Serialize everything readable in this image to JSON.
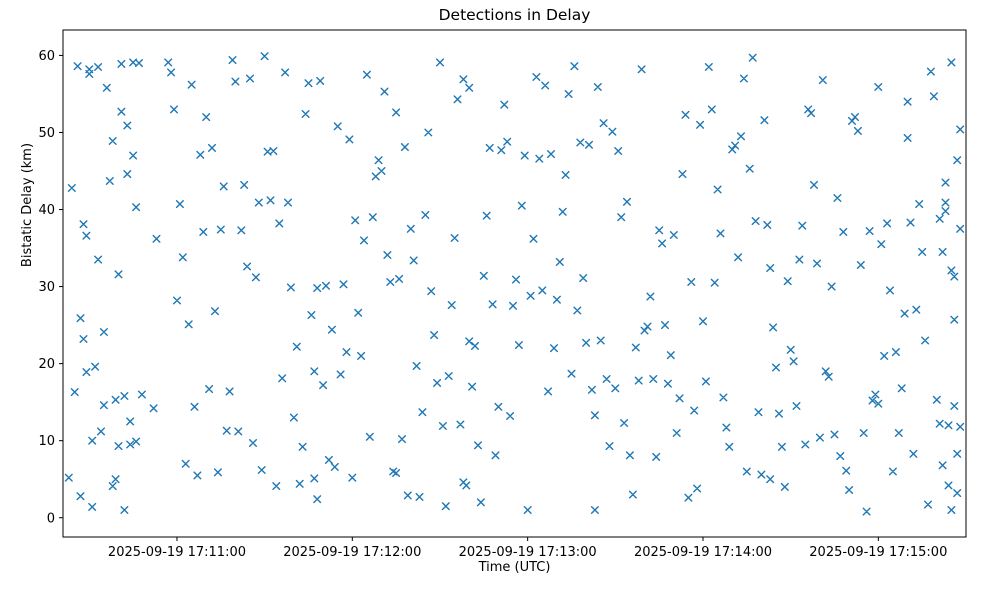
{
  "title": "Detections in Delay",
  "xlabel": "Time (UTC)",
  "ylabel": "Bistatic Delay (km)",
  "chart_data": {
    "type": "scatter",
    "title": "Detections in Delay",
    "xlabel": "Time (UTC)",
    "ylabel": "Bistatic Delay (km)",
    "marker": "x",
    "marker_color": "#1f77b4",
    "grid": false,
    "legend": "none",
    "x_encoding": "seconds after 2025-09-19 17:10:00 UTC",
    "xlim": [
      21,
      330
    ],
    "ylim": [
      -2.5,
      63.3
    ],
    "x_ticks": [
      {
        "value": 60,
        "label": "2025-09-19 17:11:00"
      },
      {
        "value": 120,
        "label": "2025-09-19 17:12:00"
      },
      {
        "value": 180,
        "label": "2025-09-19 17:13:00"
      },
      {
        "value": 240,
        "label": "2025-09-19 17:14:00"
      },
      {
        "value": 300,
        "label": "2025-09-19 17:15:00"
      }
    ],
    "y_ticks": [
      0,
      10,
      20,
      30,
      40,
      50,
      60
    ],
    "points": [
      [
        23,
        5.2
      ],
      [
        24,
        42.8
      ],
      [
        25,
        16.3
      ],
      [
        26,
        58.6
      ],
      [
        27,
        25.9
      ],
      [
        27,
        2.8
      ],
      [
        28,
        23.2
      ],
      [
        28,
        38.1
      ],
      [
        29,
        18.9
      ],
      [
        29,
        36.6
      ],
      [
        30,
        58.2
      ],
      [
        30,
        57.6
      ],
      [
        31,
        10.0
      ],
      [
        31,
        1.4
      ],
      [
        32,
        19.6
      ],
      [
        33,
        58.5
      ],
      [
        33,
        33.5
      ],
      [
        34,
        11.2
      ],
      [
        35,
        24.1
      ],
      [
        35,
        14.6
      ],
      [
        36,
        55.8
      ],
      [
        37,
        43.7
      ],
      [
        38,
        4.1
      ],
      [
        38,
        48.9
      ],
      [
        39,
        15.3
      ],
      [
        39,
        5.0
      ],
      [
        40,
        31.6
      ],
      [
        40,
        9.3
      ],
      [
        41,
        58.9
      ],
      [
        41,
        52.7
      ],
      [
        42,
        15.8
      ],
      [
        42,
        1.0
      ],
      [
        43,
        50.9
      ],
      [
        43,
        44.6
      ],
      [
        44,
        12.5
      ],
      [
        44,
        9.5
      ],
      [
        45,
        59.1
      ],
      [
        45,
        47.0
      ],
      [
        46,
        40.3
      ],
      [
        46,
        9.9
      ],
      [
        47,
        59.0
      ],
      [
        48,
        16.0
      ],
      [
        52,
        14.2
      ],
      [
        53,
        36.2
      ],
      [
        57,
        59.1
      ],
      [
        58,
        57.8
      ],
      [
        59,
        53.0
      ],
      [
        60,
        28.2
      ],
      [
        61,
        40.7
      ],
      [
        62,
        33.8
      ],
      [
        63,
        7.0
      ],
      [
        64,
        25.1
      ],
      [
        65,
        56.2
      ],
      [
        66,
        14.4
      ],
      [
        67,
        5.5
      ],
      [
        68,
        47.1
      ],
      [
        69,
        37.1
      ],
      [
        70,
        52.0
      ],
      [
        71,
        16.7
      ],
      [
        72,
        48.0
      ],
      [
        73,
        26.8
      ],
      [
        74,
        5.9
      ],
      [
        75,
        37.4
      ],
      [
        76,
        43.0
      ],
      [
        77,
        11.3
      ],
      [
        78,
        16.4
      ],
      [
        79,
        59.4
      ],
      [
        80,
        56.6
      ],
      [
        81,
        11.2
      ],
      [
        82,
        37.3
      ],
      [
        83,
        43.2
      ],
      [
        84,
        32.6
      ],
      [
        85,
        57.0
      ],
      [
        86,
        9.7
      ],
      [
        87,
        31.2
      ],
      [
        88,
        40.9
      ],
      [
        89,
        6.2
      ],
      [
        90,
        59.9
      ],
      [
        91,
        47.5
      ],
      [
        92,
        41.2
      ],
      [
        93,
        47.6
      ],
      [
        94,
        4.1
      ],
      [
        95,
        38.2
      ],
      [
        96,
        18.1
      ],
      [
        97,
        57.8
      ],
      [
        98,
        40.9
      ],
      [
        99,
        29.9
      ],
      [
        100,
        13.0
      ],
      [
        101,
        22.2
      ],
      [
        102,
        4.4
      ],
      [
        103,
        9.2
      ],
      [
        104,
        52.4
      ],
      [
        105,
        56.4
      ],
      [
        106,
        26.3
      ],
      [
        107,
        19.0
      ],
      [
        107,
        5.1
      ],
      [
        108,
        29.8
      ],
      [
        108,
        2.4
      ],
      [
        109,
        56.7
      ],
      [
        110,
        17.2
      ],
      [
        111,
        30.1
      ],
      [
        112,
        7.5
      ],
      [
        113,
        24.4
      ],
      [
        114,
        6.6
      ],
      [
        115,
        50.8
      ],
      [
        116,
        18.6
      ],
      [
        117,
        30.3
      ],
      [
        118,
        21.5
      ],
      [
        119,
        49.1
      ],
      [
        120,
        5.2
      ],
      [
        121,
        38.6
      ],
      [
        122,
        26.6
      ],
      [
        123,
        21.0
      ],
      [
        124,
        36.0
      ],
      [
        125,
        57.5
      ],
      [
        126,
        10.5
      ],
      [
        127,
        39.0
      ],
      [
        128,
        44.3
      ],
      [
        129,
        46.4
      ],
      [
        130,
        45.0
      ],
      [
        131,
        55.3
      ],
      [
        132,
        34.1
      ],
      [
        133,
        30.6
      ],
      [
        134,
        6.0
      ],
      [
        135,
        52.6
      ],
      [
        135,
        5.8
      ],
      [
        136,
        31.0
      ],
      [
        137,
        10.2
      ],
      [
        138,
        48.1
      ],
      [
        139,
        2.9
      ],
      [
        140,
        37.5
      ],
      [
        141,
        33.4
      ],
      [
        142,
        19.7
      ],
      [
        143,
        2.7
      ],
      [
        144,
        13.7
      ],
      [
        145,
        39.3
      ],
      [
        146,
        50.0
      ],
      [
        147,
        29.4
      ],
      [
        148,
        23.7
      ],
      [
        149,
        17.5
      ],
      [
        150,
        59.1
      ],
      [
        151,
        11.9
      ],
      [
        152,
        1.5
      ],
      [
        153,
        18.4
      ],
      [
        154,
        27.6
      ],
      [
        155,
        36.3
      ],
      [
        156,
        54.3
      ],
      [
        157,
        12.1
      ],
      [
        158,
        56.9
      ],
      [
        158,
        4.6
      ],
      [
        159,
        4.2
      ],
      [
        160,
        55.8
      ],
      [
        160,
        22.9
      ],
      [
        161,
        17.0
      ],
      [
        162,
        22.3
      ],
      [
        163,
        9.4
      ],
      [
        164,
        2.0
      ],
      [
        165,
        31.4
      ],
      [
        166,
        39.2
      ],
      [
        167,
        48.0
      ],
      [
        168,
        27.7
      ],
      [
        169,
        8.1
      ],
      [
        170,
        14.4
      ],
      [
        171,
        47.7
      ],
      [
        172,
        53.6
      ],
      [
        173,
        48.8
      ],
      [
        174,
        13.2
      ],
      [
        175,
        27.5
      ],
      [
        176,
        30.9
      ],
      [
        177,
        22.4
      ],
      [
        178,
        40.5
      ],
      [
        179,
        47.0
      ],
      [
        180,
        1.0
      ],
      [
        181,
        28.8
      ],
      [
        182,
        36.2
      ],
      [
        183,
        57.2
      ],
      [
        184,
        46.6
      ],
      [
        185,
        29.5
      ],
      [
        186,
        56.1
      ],
      [
        187,
        16.4
      ],
      [
        188,
        47.2
      ],
      [
        189,
        22.0
      ],
      [
        190,
        28.3
      ],
      [
        191,
        33.2
      ],
      [
        192,
        39.7
      ],
      [
        193,
        44.5
      ],
      [
        194,
        55.0
      ],
      [
        195,
        18.7
      ],
      [
        196,
        58.6
      ],
      [
        197,
        26.9
      ],
      [
        198,
        48.7
      ],
      [
        199,
        31.1
      ],
      [
        200,
        22.7
      ],
      [
        201,
        48.4
      ],
      [
        202,
        16.6
      ],
      [
        203,
        13.3
      ],
      [
        203,
        1.0
      ],
      [
        204,
        55.9
      ],
      [
        205,
        23.0
      ],
      [
        206,
        51.2
      ],
      [
        207,
        18.0
      ],
      [
        208,
        9.3
      ],
      [
        209,
        50.1
      ],
      [
        210,
        16.8
      ],
      [
        211,
        47.6
      ],
      [
        212,
        39.0
      ],
      [
        213,
        12.3
      ],
      [
        214,
        41.0
      ],
      [
        215,
        8.1
      ],
      [
        216,
        3.0
      ],
      [
        217,
        22.1
      ],
      [
        218,
        17.8
      ],
      [
        219,
        58.2
      ],
      [
        220,
        24.3
      ],
      [
        221,
        24.8
      ],
      [
        222,
        28.7
      ],
      [
        223,
        18.0
      ],
      [
        224,
        7.9
      ],
      [
        225,
        37.3
      ],
      [
        226,
        35.6
      ],
      [
        227,
        25.0
      ],
      [
        228,
        17.4
      ],
      [
        229,
        21.1
      ],
      [
        230,
        36.7
      ],
      [
        231,
        11.0
      ],
      [
        232,
        15.5
      ],
      [
        233,
        44.6
      ],
      [
        234,
        52.3
      ],
      [
        235,
        2.6
      ],
      [
        236,
        30.6
      ],
      [
        237,
        13.9
      ],
      [
        238,
        3.8
      ],
      [
        239,
        51.0
      ],
      [
        240,
        25.5
      ],
      [
        241,
        17.7
      ],
      [
        242,
        58.5
      ],
      [
        243,
        53.0
      ],
      [
        244,
        30.5
      ],
      [
        245,
        42.6
      ],
      [
        246,
        36.9
      ],
      [
        247,
        15.6
      ],
      [
        248,
        11.7
      ],
      [
        249,
        9.2
      ],
      [
        250,
        47.8
      ],
      [
        251,
        48.3
      ],
      [
        252,
        33.8
      ],
      [
        253,
        49.5
      ],
      [
        254,
        57.0
      ],
      [
        255,
        6.0
      ],
      [
        256,
        45.3
      ],
      [
        257,
        59.7
      ],
      [
        258,
        38.5
      ],
      [
        259,
        13.7
      ],
      [
        260,
        5.6
      ],
      [
        261,
        51.6
      ],
      [
        262,
        38.0
      ],
      [
        263,
        32.4
      ],
      [
        263,
        5.0
      ],
      [
        264,
        24.7
      ],
      [
        265,
        19.5
      ],
      [
        266,
        13.5
      ],
      [
        267,
        9.2
      ],
      [
        268,
        4.0
      ],
      [
        269,
        30.7
      ],
      [
        270,
        21.8
      ],
      [
        271,
        20.3
      ],
      [
        272,
        14.5
      ],
      [
        273,
        33.5
      ],
      [
        274,
        37.9
      ],
      [
        275,
        9.5
      ],
      [
        276,
        53.0
      ],
      [
        277,
        52.5
      ],
      [
        278,
        43.2
      ],
      [
        279,
        33.0
      ],
      [
        280,
        10.4
      ],
      [
        281,
        56.8
      ],
      [
        282,
        19.0
      ],
      [
        283,
        18.3
      ],
      [
        284,
        30.0
      ],
      [
        285,
        10.8
      ],
      [
        286,
        41.5
      ],
      [
        287,
        8.0
      ],
      [
        288,
        37.1
      ],
      [
        289,
        6.1
      ],
      [
        290,
        3.6
      ],
      [
        291,
        51.5
      ],
      [
        292,
        52.0
      ],
      [
        293,
        50.2
      ],
      [
        294,
        32.8
      ],
      [
        295,
        11.0
      ],
      [
        296,
        0.8
      ],
      [
        297,
        37.2
      ],
      [
        298,
        15.2
      ],
      [
        299,
        16.0
      ],
      [
        300,
        55.9
      ],
      [
        300,
        14.8
      ],
      [
        301,
        35.5
      ],
      [
        302,
        21.0
      ],
      [
        303,
        38.2
      ],
      [
        304,
        29.5
      ],
      [
        305,
        6.0
      ],
      [
        306,
        21.5
      ],
      [
        307,
        11.0
      ],
      [
        308,
        16.8
      ],
      [
        309,
        26.5
      ],
      [
        310,
        54.0
      ],
      [
        310,
        49.3
      ],
      [
        311,
        38.3
      ],
      [
        312,
        8.3
      ],
      [
        313,
        27.0
      ],
      [
        314,
        40.7
      ],
      [
        315,
        34.5
      ],
      [
        316,
        23.0
      ],
      [
        317,
        1.7
      ],
      [
        318,
        57.9
      ],
      [
        319,
        54.7
      ],
      [
        320,
        15.3
      ],
      [
        321,
        38.8
      ],
      [
        322,
        6.8
      ],
      [
        323,
        43.5
      ],
      [
        323,
        40.9
      ],
      [
        324,
        4.2
      ],
      [
        325,
        59.1
      ],
      [
        325,
        32.1
      ],
      [
        326,
        14.5
      ],
      [
        326,
        25.7
      ],
      [
        327,
        8.3
      ],
      [
        327,
        3.2
      ],
      [
        328,
        11.8
      ],
      [
        328,
        50.4
      ],
      [
        328,
        37.5
      ],
      [
        327,
        46.4
      ],
      [
        326,
        31.3
      ],
      [
        325,
        1.0
      ],
      [
        324,
        12.0
      ],
      [
        323,
        39.8
      ],
      [
        322,
        34.5
      ],
      [
        321,
        12.2
      ]
    ]
  }
}
